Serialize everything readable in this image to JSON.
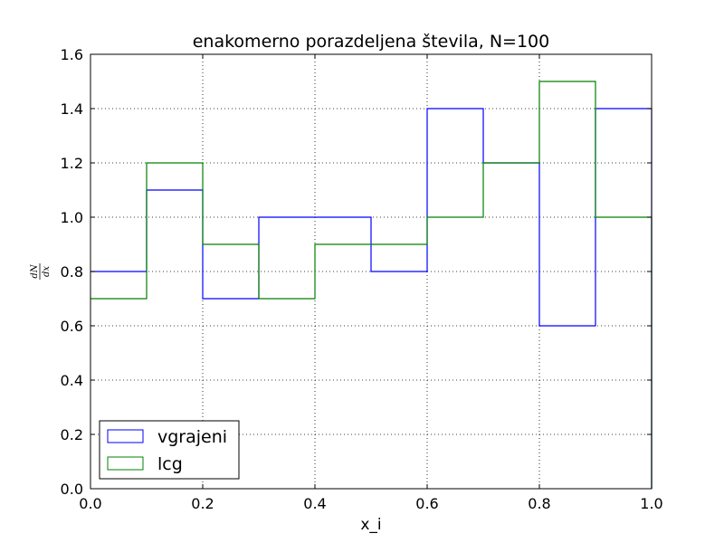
{
  "chart_data": {
    "type": "line",
    "title": "enakomerno porazdeljena števila, N=100",
    "xlabel": "x_i",
    "ylabel": {
      "numerator": "dN",
      "denominator": "dx"
    },
    "xlim": [
      0.0,
      1.0
    ],
    "ylim": [
      0.0,
      1.6
    ],
    "xticks": [
      "0.0",
      "0.2",
      "0.4",
      "0.6",
      "0.8",
      "1.0"
    ],
    "yticks": [
      "0.0",
      "0.2",
      "0.4",
      "0.6",
      "0.8",
      "1.0",
      "1.2",
      "1.4",
      "1.6"
    ],
    "grid": true,
    "legend_position": "lower-left",
    "bin_edges": [
      0.0,
      0.1,
      0.2,
      0.3,
      0.4,
      0.5,
      0.6,
      0.7,
      0.8,
      0.9,
      1.0
    ],
    "series": [
      {
        "name": "vgrajeni",
        "color": "#0000ff",
        "values": [
          0.8,
          1.1,
          0.7,
          1.0,
          1.0,
          0.8,
          1.4,
          1.2,
          0.6,
          1.4
        ]
      },
      {
        "name": "lcg",
        "color": "#008000",
        "values": [
          0.7,
          1.2,
          0.9,
          0.7,
          0.9,
          0.9,
          1.0,
          1.2,
          1.5,
          1.0
        ]
      }
    ]
  }
}
